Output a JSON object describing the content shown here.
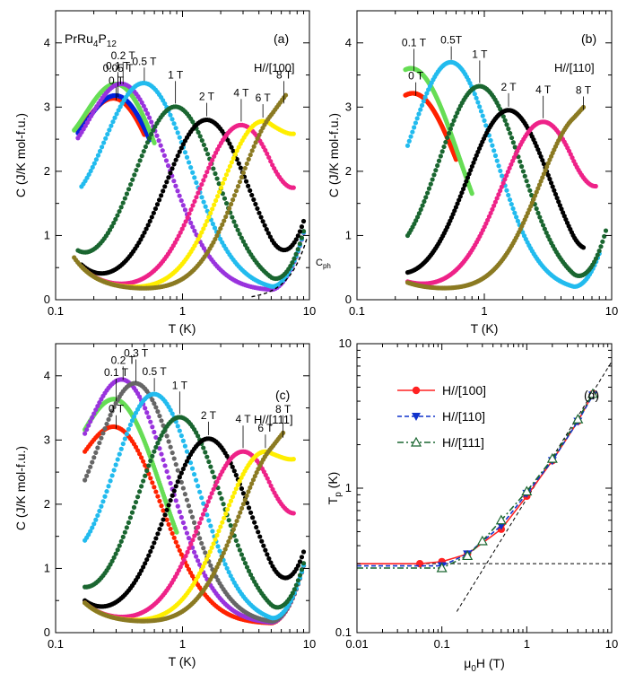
{
  "chart_data": [
    {
      "panel": "(a)",
      "type": "scatter",
      "compound": "PrRu4P12",
      "direction": "H//[100]",
      "xlabel": "T (K)",
      "ylabel": "C (J/K mol-f.u.)",
      "xscale": "log",
      "xlim": [
        0.1,
        10
      ],
      "ylim": [
        0,
        4.5
      ],
      "x_ticks": [
        "0.1",
        "1",
        "10"
      ],
      "y_ticks": [
        "0",
        "1",
        "2",
        "3",
        "4"
      ],
      "phonon_label": "Cph",
      "series": [
        {
          "name": "0 T",
          "color": "#ff2200",
          "label": "0 T",
          "peak_T": 0.3,
          "peak_C": 3.05,
          "width": 0.36,
          "start_T": 0.15,
          "end_T": 0.5
        },
        {
          "name": "0.05 T",
          "color": "#0022dd",
          "label": "0.05 T",
          "peak_T": 0.31,
          "peak_C": 3.1,
          "width": 0.36,
          "start_T": 0.15,
          "end_T": 0.55
        },
        {
          "name": "0.1 T",
          "color": "#66dd55",
          "label": "0.1 T",
          "peak_T": 0.31,
          "peak_C": 3.28,
          "width": 0.36,
          "start_T": 0.14,
          "end_T": 0.6
        },
        {
          "name": "0.2 T",
          "color": "#9933dd",
          "label": "0.2 T",
          "peak_T": 0.34,
          "peak_C": 3.3,
          "width": 0.36,
          "start_T": 0.15,
          "end_T": 9
        },
        {
          "name": "0.5 T",
          "color": "#22bbee",
          "label": "0.5 T",
          "peak_T": 0.5,
          "peak_C": 3.35,
          "width": 0.36,
          "start_T": 0.16,
          "end_T": 9
        },
        {
          "name": "1 T",
          "color": "#1a6630",
          "label": "1 T",
          "peak_T": 0.88,
          "peak_C": 3.0,
          "width": 0.33,
          "start_T": 0.15,
          "end_T": 9
        },
        {
          "name": "2 T",
          "color": "#000000",
          "label": "2 T",
          "peak_T": 1.55,
          "peak_C": 2.8,
          "width": 0.33,
          "start_T": 0.16,
          "end_T": 9
        },
        {
          "name": "4 T",
          "color": "#ee2288",
          "label": "4 T",
          "peak_T": 2.9,
          "peak_C": 2.72,
          "width": 0.33,
          "start_T": 0.16,
          "end_T": 7.5
        },
        {
          "name": "6 T",
          "color": "#ffee00",
          "label": "6 T",
          "peak_T": 4.3,
          "peak_C": 2.78,
          "width": 0.33,
          "start_T": 0.16,
          "end_T": 7.5
        },
        {
          "name": "8 T",
          "color": "#8b7a22",
          "label": "8 T",
          "peak_T": 6.3,
          "peak_C": 3.0,
          "width": 0.34,
          "start_T": 0.14,
          "end_T": 6.5
        }
      ]
    },
    {
      "panel": "(b)",
      "type": "scatter",
      "direction": "H//[110]",
      "xlabel": "T (K)",
      "ylabel": "C (J/K mol-f.u.)",
      "xscale": "log",
      "xlim": [
        0.1,
        10
      ],
      "ylim": [
        0,
        4.5
      ],
      "x_ticks": [
        "0.1",
        "1",
        "10"
      ],
      "y_ticks": [
        "0",
        "1",
        "2",
        "3",
        "4"
      ],
      "series": [
        {
          "name": "0 T",
          "color": "#ff2200",
          "label": "0 T",
          "peak_T": 0.29,
          "peak_C": 3.12,
          "width": 0.36,
          "start_T": 0.24,
          "end_T": 0.6
        },
        {
          "name": "0.1 T",
          "color": "#66dd55",
          "label": "0.1 T",
          "peak_T": 0.28,
          "peak_C": 3.5,
          "width": 0.36,
          "start_T": 0.24,
          "end_T": 0.8
        },
        {
          "name": "0.5T",
          "color": "#22bbee",
          "label": "0.5T",
          "peak_T": 0.55,
          "peak_C": 3.68,
          "width": 0.34,
          "start_T": 0.25,
          "end_T": 8
        },
        {
          "name": "1 T",
          "color": "#1a6630",
          "label": "1 T",
          "peak_T": 0.92,
          "peak_C": 3.32,
          "width": 0.33,
          "start_T": 0.25,
          "end_T": 9
        },
        {
          "name": "2 T",
          "color": "#000000",
          "label": "2 T",
          "peak_T": 1.55,
          "peak_C": 2.95,
          "width": 0.33,
          "start_T": 0.25,
          "end_T": 6
        },
        {
          "name": "4 T",
          "color": "#ee2288",
          "label": "4 T",
          "peak_T": 2.9,
          "peak_C": 2.77,
          "width": 0.33,
          "start_T": 0.25,
          "end_T": 7.5
        },
        {
          "name": "8 T",
          "color": "#8b7a22",
          "label": "8 T",
          "peak_T": 6.0,
          "peak_C": 2.9,
          "width": 0.34,
          "start_T": 0.25,
          "end_T": 6
        }
      ]
    },
    {
      "panel": "(c)",
      "type": "scatter",
      "direction": "H//[111]",
      "xlabel": "T (K)",
      "ylabel": "C (J/K mol-f.u.)",
      "xscale": "log",
      "xlim": [
        0.1,
        10
      ],
      "ylim": [
        0,
        4.5
      ],
      "x_ticks": [
        "0.1",
        "1",
        "10"
      ],
      "y_ticks": [
        "0",
        "1",
        "2",
        "3",
        "4"
      ],
      "series": [
        {
          "name": "0 T",
          "color": "#ff2200",
          "label": "0 T",
          "peak_T": 0.3,
          "peak_C": 3.12,
          "width": 0.36,
          "start_T": 0.17,
          "end_T": 9
        },
        {
          "name": "0.1 T",
          "color": "#66dd55",
          "label": "0.1 T",
          "peak_T": 0.3,
          "peak_C": 3.55,
          "width": 0.36,
          "start_T": 0.17,
          "end_T": 0.9
        },
        {
          "name": "0.2 T",
          "color": "#9933dd",
          "label": "0.2 T",
          "peak_T": 0.34,
          "peak_C": 3.88,
          "width": 0.36,
          "start_T": 0.17,
          "end_T": 9
        },
        {
          "name": "0.3 T",
          "color": "#666666",
          "label": "0.3 T",
          "peak_T": 0.43,
          "peak_C": 3.85,
          "width": 0.35,
          "start_T": 0.17,
          "end_T": 9
        },
        {
          "name": "0.5 T",
          "color": "#22bbee",
          "label": "0.5 T",
          "peak_T": 0.6,
          "peak_C": 3.7,
          "width": 0.34,
          "start_T": 0.17,
          "end_T": 9
        },
        {
          "name": "1 T",
          "color": "#1a6630",
          "label": "1 T",
          "peak_T": 0.95,
          "peak_C": 3.35,
          "width": 0.33,
          "start_T": 0.17,
          "end_T": 9
        },
        {
          "name": "2 T",
          "color": "#000000",
          "label": "2 T",
          "peak_T": 1.6,
          "peak_C": 3.02,
          "width": 0.33,
          "start_T": 0.17,
          "end_T": 9
        },
        {
          "name": "4 T",
          "color": "#ee2288",
          "label": "4 T",
          "peak_T": 3.0,
          "peak_C": 2.82,
          "width": 0.33,
          "start_T": 0.17,
          "end_T": 7.5
        },
        {
          "name": "6 T",
          "color": "#ffee00",
          "label": "6 T",
          "peak_T": 4.5,
          "peak_C": 2.82,
          "width": 0.33,
          "start_T": 0.17,
          "end_T": 7.5
        },
        {
          "name": "8 T",
          "color": "#8b7a22",
          "label": "8 T",
          "peak_T": 6.2,
          "peak_C": 2.98,
          "width": 0.34,
          "start_T": 0.17,
          "end_T": 6.2
        }
      ]
    },
    {
      "panel": "(d)",
      "type": "line",
      "xlabel": "μ0H (T)",
      "ylabel": "Tp (K)",
      "xscale": "log",
      "yscale": "log",
      "xlim": [
        0.01,
        10
      ],
      "ylim": [
        0.1,
        10
      ],
      "x_ticks": [
        "0.01",
        "0.1",
        "1",
        "10"
      ],
      "y_ticks": [
        "0.1",
        "1",
        "10"
      ],
      "legend_position": "top-left",
      "series": [
        {
          "name": "H//[100]",
          "color": "#ff2222",
          "marker": "circle",
          "line": "solid",
          "x": [
            0.01,
            0.055,
            0.1,
            0.2,
            0.5,
            1,
            2,
            4,
            6
          ],
          "y": [
            0.3,
            0.3,
            0.31,
            0.35,
            0.52,
            0.88,
            1.55,
            2.9,
            4.5
          ],
          "marked": [
            false,
            true,
            true,
            true,
            true,
            true,
            true,
            true,
            true
          ]
        },
        {
          "name": "H//[110]",
          "color": "#1133cc",
          "marker": "triangle-down",
          "line": "dashed",
          "x": [
            0.01,
            0.1,
            0.2,
            0.5,
            1,
            2,
            4,
            6
          ],
          "y": [
            0.29,
            0.29,
            0.35,
            0.55,
            0.92,
            1.55,
            2.9,
            4.4
          ],
          "marked": [
            false,
            true,
            true,
            true,
            true,
            true,
            true,
            true
          ]
        },
        {
          "name": "H//[111]",
          "color": "#1a6630",
          "marker": "triangle-up",
          "line": "dashdot",
          "x": [
            0.01,
            0.1,
            0.2,
            0.3,
            0.5,
            1,
            2,
            4,
            6
          ],
          "y": [
            0.28,
            0.28,
            0.34,
            0.43,
            0.6,
            0.95,
            1.6,
            3.0,
            4.5
          ],
          "marked": [
            false,
            true,
            true,
            true,
            true,
            true,
            true,
            true,
            true
          ]
        }
      ],
      "reference_lines": [
        {
          "style": "dashed",
          "x": [
            0.01,
            10
          ],
          "y": [
            0.3,
            0.3
          ]
        },
        {
          "style": "dashed",
          "x": [
            0.15,
            10
          ],
          "y": [
            0.14,
            7.5
          ]
        }
      ]
    }
  ]
}
